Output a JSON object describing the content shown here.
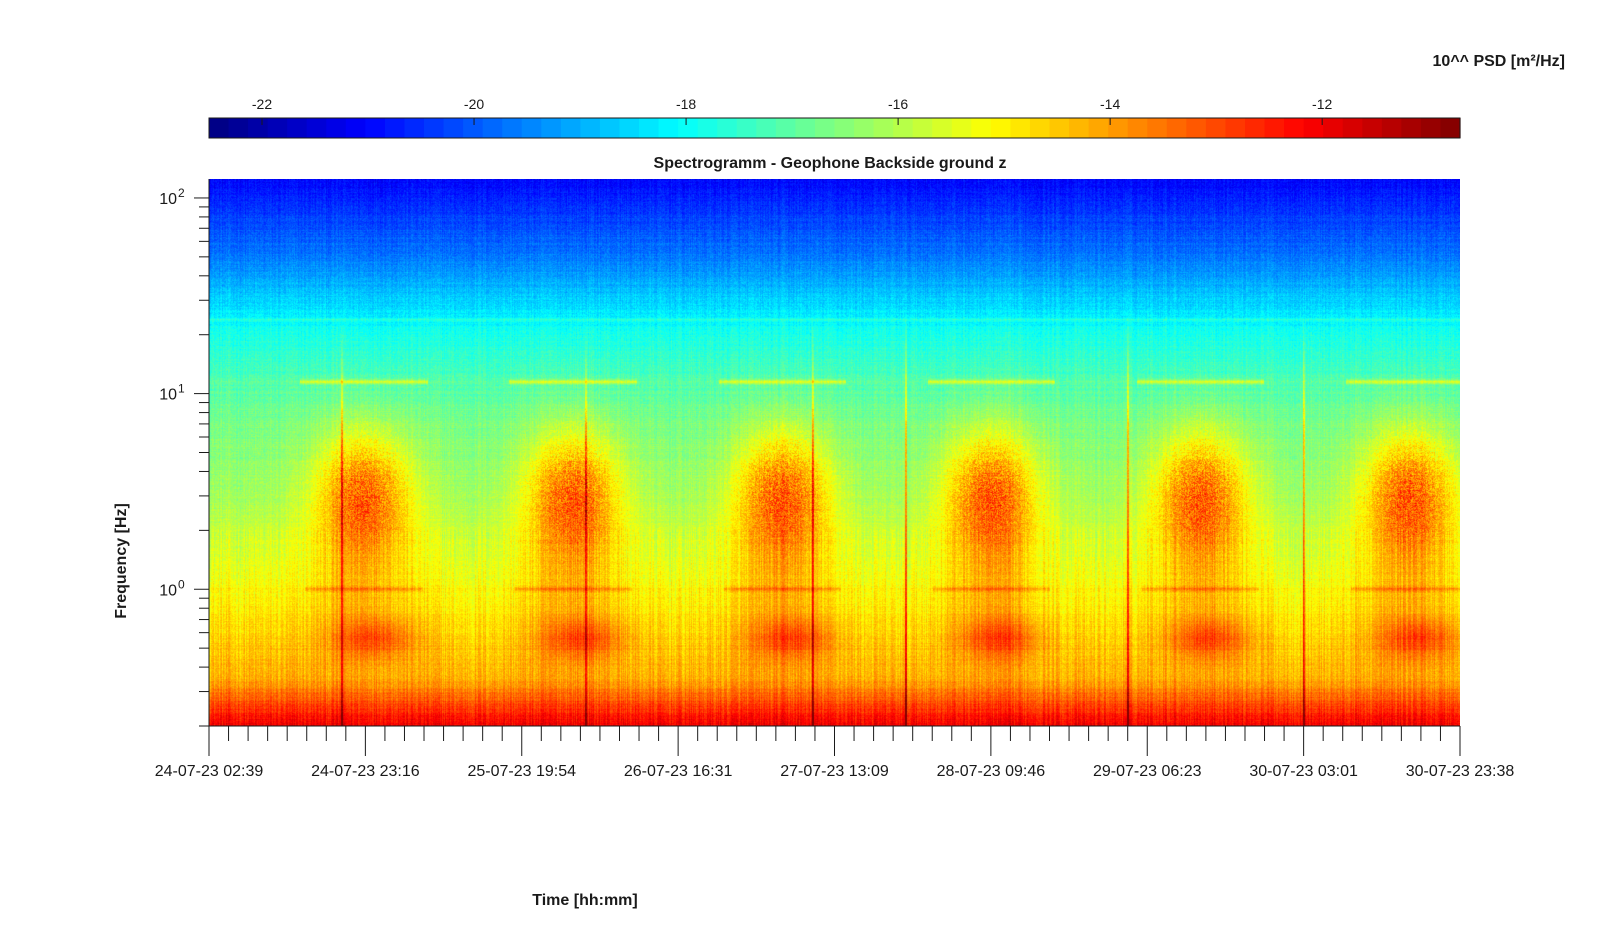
{
  "chart_data": {
    "type": "heatmap",
    "title": "Spectrogramm - Geophone Backside ground z",
    "xlabel": "Time [hh:mm]",
    "ylabel": "Frequency [Hz]",
    "x_tick_labels": [
      "24-07-23 02:39",
      "24-07-23 23:16",
      "25-07-23 19:54",
      "26-07-23 16:31",
      "27-07-23 13:09",
      "28-07-23 09:46",
      "29-07-23 06:23",
      "30-07-23 03:01",
      "30-07-23 23:38"
    ],
    "y_scale": "log",
    "ylim": [
      0.2,
      125
    ],
    "y_ticks": [
      {
        "value": 1,
        "base": "10",
        "exp": "0"
      },
      {
        "value": 10,
        "base": "10",
        "exp": "1"
      },
      {
        "value": 100,
        "base": "10",
        "exp": "2"
      }
    ],
    "colorbar": {
      "label": "10^^ PSD [m²/Hz]",
      "colormap": "jet",
      "range": [
        -22.5,
        -10.7
      ],
      "ticks": [
        -22,
        -20,
        -18,
        -16,
        -14,
        -12
      ]
    },
    "features": {
      "background_by_frequency": [
        {
          "freq_hz": 0.2,
          "log_psd": -12.0
        },
        {
          "freq_hz": 0.35,
          "log_psd": -14.2
        },
        {
          "freq_hz": 0.7,
          "log_psd": -14.8
        },
        {
          "freq_hz": 1.0,
          "log_psd": -15.2
        },
        {
          "freq_hz": 3.0,
          "log_psd": -16.2
        },
        {
          "freq_hz": 8.0,
          "log_psd": -16.8
        },
        {
          "freq_hz": 20.0,
          "log_psd": -17.8
        },
        {
          "freq_hz": 50.0,
          "log_psd": -19.6
        },
        {
          "freq_hz": 125.0,
          "log_psd": -21.0
        }
      ],
      "daily_activity_centers_day": [
        0.85,
        2.0,
        3.15,
        4.3,
        5.45,
        6.6
      ],
      "night_microseism_centers_day": [
        0.9,
        2.05,
        3.2,
        4.35,
        5.5,
        6.65,
        7.75
      ],
      "narrowband_lines_hz": [
        1.0,
        11.5,
        24.0
      ],
      "transient_spikes_day": [
        0.73,
        2.07,
        3.32,
        3.83,
        5.05,
        6.02
      ]
    }
  }
}
